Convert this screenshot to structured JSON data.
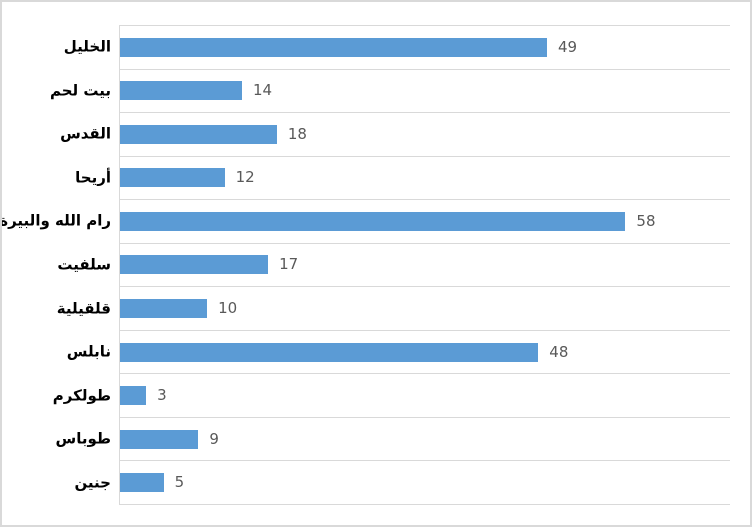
{
  "chart": {
    "bar_color": "#5b9bd5",
    "grid_color": "#d9d9d9",
    "frame_color": "#d9d9d9",
    "value_label_color": "#595959",
    "category_label_color": "#000000"
  },
  "chart_data": {
    "type": "bar",
    "orientation": "horizontal",
    "title": "",
    "xlabel": "",
    "ylabel": "",
    "categories": [
      "الخليل",
      "بيت لحم",
      "القدس",
      "أريحا",
      "رام الله والبيرة",
      "سلفيت",
      "قلقيلية",
      "نابلس",
      "طولكرم",
      "طوباس",
      "جنين"
    ],
    "values": [
      49,
      14,
      18,
      12,
      58,
      17,
      10,
      48,
      3,
      9,
      5
    ],
    "data_labels": [
      "49",
      "14",
      "18",
      "12",
      "58",
      "17",
      "10",
      "48",
      "3",
      "9",
      "5"
    ],
    "xlim": [
      0,
      70
    ],
    "grid": true,
    "gridline_style": "horizontal category separators",
    "legend": false,
    "axis_tick_labels_visible": false
  }
}
